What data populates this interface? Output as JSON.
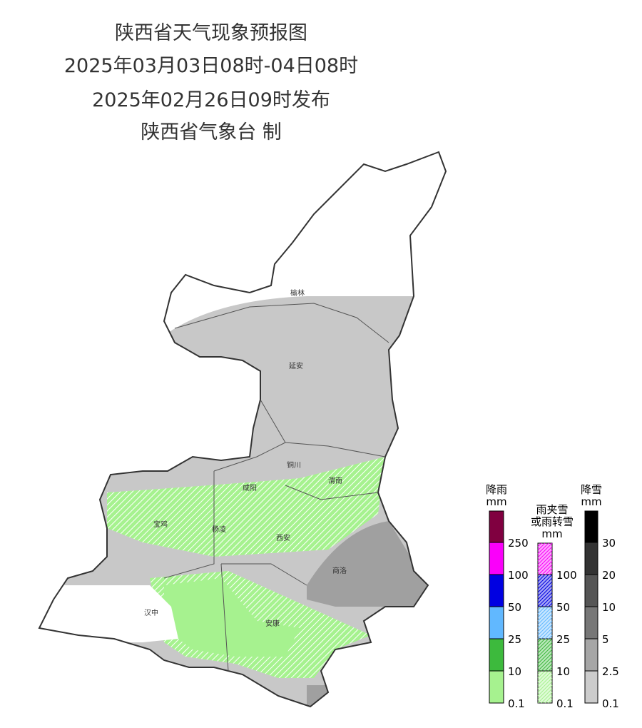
{
  "header": {
    "lines": [
      "陕西省天气现象预报图",
      "2025年03月03日08时-04日08时",
      "2025年02月26日09时发布",
      "陕西省气象台 制"
    ]
  },
  "cities": [
    {
      "label": "榆林"
    },
    {
      "label": "延安"
    },
    {
      "label": "铜川"
    },
    {
      "label": "渭南"
    },
    {
      "label": "咸阳"
    },
    {
      "label": "宝鸡"
    },
    {
      "label": "杨凌"
    },
    {
      "label": "西安"
    },
    {
      "label": "商洛"
    },
    {
      "label": "汉中"
    },
    {
      "label": "安康"
    }
  ],
  "legends": [
    {
      "title": [
        "降雨",
        "mm"
      ],
      "ticks": [
        0.1,
        10,
        25,
        50,
        100,
        250
      ],
      "colors": [
        "#a6f28f",
        "#3dba3d",
        "#61b8ff",
        "#0000e1",
        "#fa00fa",
        "#800040"
      ],
      "hatched": false
    },
    {
      "title": [
        "雨夹雪",
        "或雨转雪",
        "mm"
      ],
      "ticks": [
        0.1,
        10,
        25,
        50,
        100
      ],
      "colors": [
        "#a6f28f",
        "#3dba3d",
        "#61b8ff",
        "#0000e1",
        "#fa00fa"
      ],
      "hatched": true
    },
    {
      "title": [
        "降雪",
        "mm"
      ],
      "ticks": [
        0.1,
        2.5,
        5,
        10,
        20,
        30
      ],
      "colors": [
        "#cccccc",
        "#a6a6a6",
        "#777777",
        "#555555",
        "#333333",
        "#000000"
      ],
      "hatched": false
    }
  ]
}
